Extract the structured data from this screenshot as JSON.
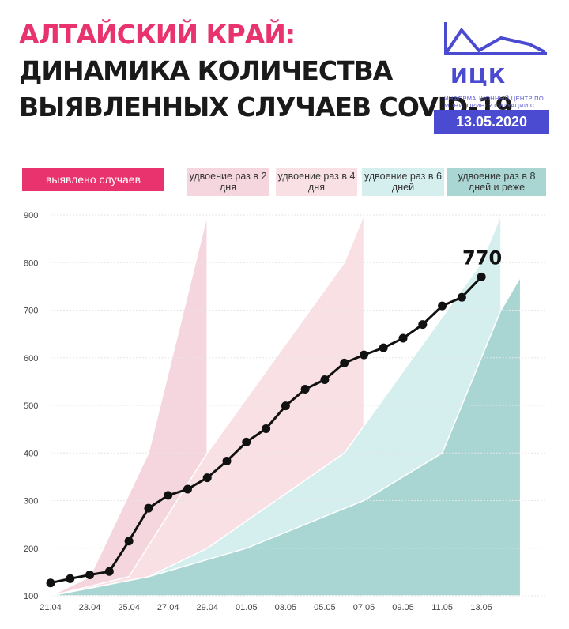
{
  "header": {
    "line1": "АЛТАЙСКИЙ КРАЙ:",
    "line2": "ДИНАМИКА КОЛИЧЕСТВА",
    "line3": "ВЫЯВЛЕННЫХ СЛУЧАЕВ COVID-19"
  },
  "logo": {
    "name": "ИЦК",
    "subtitle": "Информационный центр по мониторингу ситуации с коронавирусом"
  },
  "date": "13.05.2020",
  "legend": {
    "detected": "выявлено случаев",
    "d2": "удвоение раз в 2 дня",
    "d4": "удвоение раз в 4 дня",
    "d6": "удвоение раз в 6 дней",
    "d8": "удвоение раз в 8 дней и реже"
  },
  "colors": {
    "accent": "#e8336f",
    "brand": "#4b4bd1",
    "d2": "#f6d6de",
    "d4": "#f9e0e5",
    "d6": "#d5eeee",
    "d8": "#a9d6d3",
    "line": "#111111"
  },
  "chart_data": {
    "type": "line",
    "title": "",
    "xlabel": "",
    "ylabel": "",
    "x": [
      "21.04",
      "22.04",
      "23.04",
      "24.04",
      "25.04",
      "26.04",
      "27.04",
      "28.04",
      "29.04",
      "30.04",
      "01.05",
      "02.05",
      "03.05",
      "04.05",
      "05.05",
      "06.05",
      "07.05",
      "08.05",
      "09.05",
      "10.05",
      "11.05",
      "12.05",
      "13.05"
    ],
    "x_tick_labels": [
      "21.04",
      "23.04",
      "25.04",
      "27.04",
      "29.04",
      "01.05",
      "03.05",
      "05.05",
      "07.05",
      "09.05",
      "11.05",
      "13.05"
    ],
    "y_ticks": [
      100,
      200,
      300,
      400,
      500,
      600,
      700,
      800,
      900
    ],
    "ylim": [
      100,
      900
    ],
    "series": [
      {
        "name": "выявлено случаев",
        "values": [
          127,
          136,
          144,
          151,
          215,
          284,
          311,
          324,
          348,
          383,
          423,
          451,
          499,
          534,
          554,
          589,
          606,
          621,
          641,
          670,
          709,
          727,
          770
        ]
      }
    ],
    "last_value_label": "770",
    "bands": [
      {
        "name": "удвоение раз в 2 дня",
        "upper": [
          [
            0,
            100
          ],
          [
            2,
            140
          ],
          [
            5,
            400
          ],
          [
            8,
            900
          ]
        ]
      },
      {
        "name": "удвоение раз в 4 дня",
        "upper": [
          [
            0,
            100
          ],
          [
            4,
            140
          ],
          [
            8,
            400
          ],
          [
            15,
            800
          ],
          [
            16,
            900
          ]
        ]
      },
      {
        "name": "удвоение раз в 6 дней",
        "upper": [
          [
            0,
            100
          ],
          [
            5,
            140
          ],
          [
            8,
            200
          ],
          [
            15,
            400
          ],
          [
            22,
            800
          ],
          [
            23,
            900
          ]
        ]
      },
      {
        "name": "удвоение раз в 8 дней и реже",
        "upper": [
          [
            0,
            100
          ],
          [
            5,
            140
          ],
          [
            10,
            200
          ],
          [
            16,
            300
          ],
          [
            20,
            400
          ],
          [
            21,
            500
          ],
          [
            23,
            700
          ],
          [
            24,
            770
          ]
        ]
      }
    ],
    "grid": true,
    "legend_position": "top"
  }
}
